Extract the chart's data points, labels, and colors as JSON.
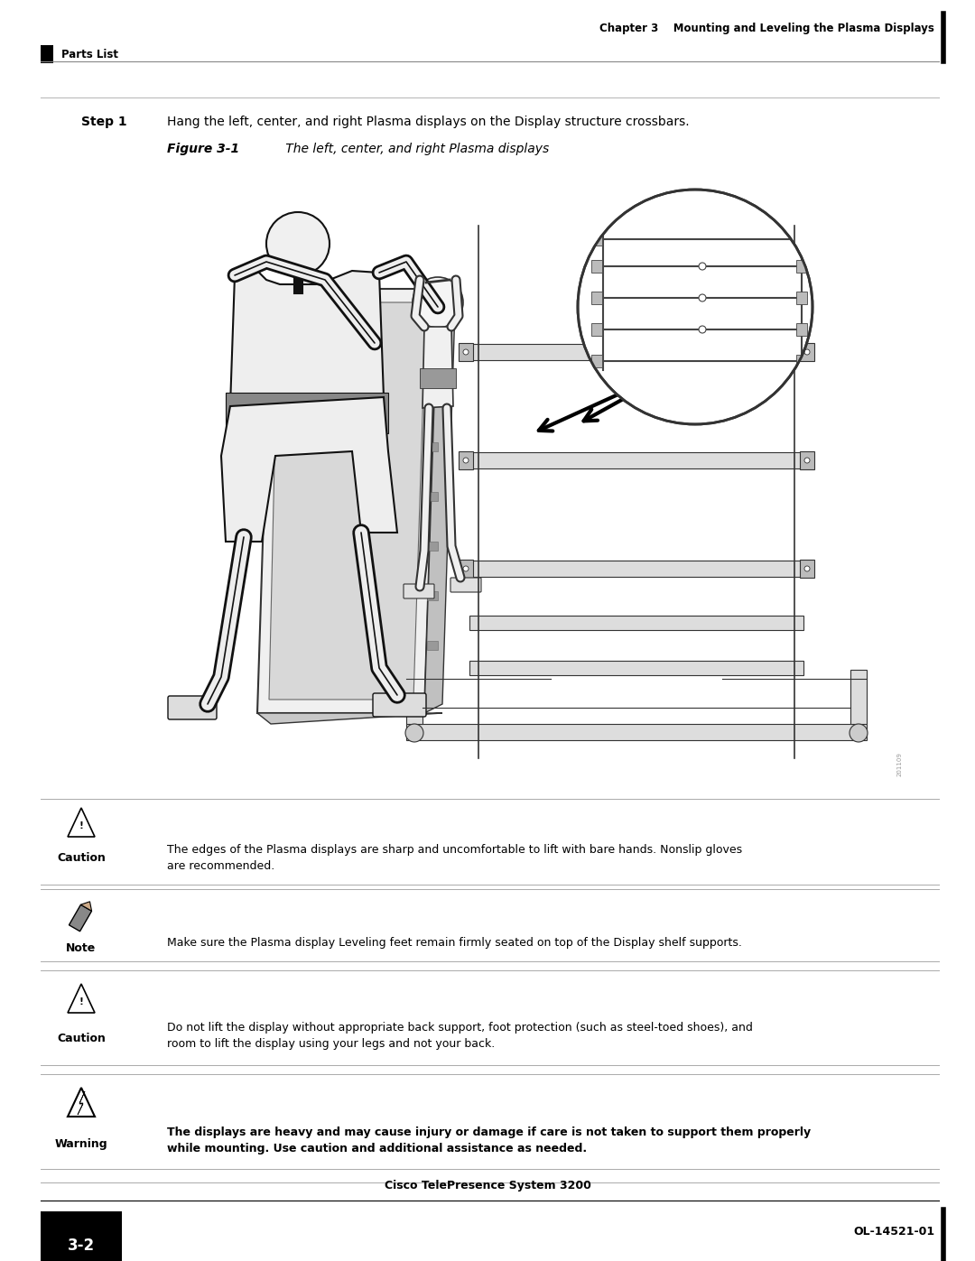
{
  "bg_color": "#ffffff",
  "page_width": 10.8,
  "page_height": 13.97,
  "header": {
    "chapter_text": "Chapter 3    Mounting and Leveling the Plasma Displays",
    "parts_list_text": "Parts List",
    "fontsize": 8.5
  },
  "step1": {
    "label": "Step 1",
    "text": "Hang the left, center, and right Plasma displays on the Display structure crossbars.",
    "fontsize": 10
  },
  "figure_label": {
    "bold_prefix": "Figure 3-1",
    "italic_text": "      The left, center, and right Plasma displays",
    "fontsize": 10
  },
  "caution1": {
    "label": "Caution",
    "text": "The edges of the Plasma displays are sharp and uncomfortable to lift with bare hands. Nonslip gloves\nare recommended.",
    "fontsize": 9
  },
  "note1": {
    "label": "Note",
    "text": "Make sure the Plasma display Leveling feet remain firmly seated on top of the Display shelf supports.",
    "fontsize": 9
  },
  "caution2": {
    "label": "Caution",
    "text": "Do not lift the display without appropriate back support, foot protection (such as steel-toed shoes), and\nroom to lift the display using your legs and not your back.",
    "fontsize": 9
  },
  "warning1": {
    "label": "Warning",
    "text_bold": "The displays are heavy and may cause injury or damage if care is not taken to support them properly\nwhile mounting. Use caution and additional assistance as needed.",
    "fontsize": 9
  },
  "footer": {
    "left_box_text": "3-2",
    "center_text": "Cisco TelePresence System 3200",
    "right_text": "OL-14521-01",
    "fontsize": 9
  }
}
